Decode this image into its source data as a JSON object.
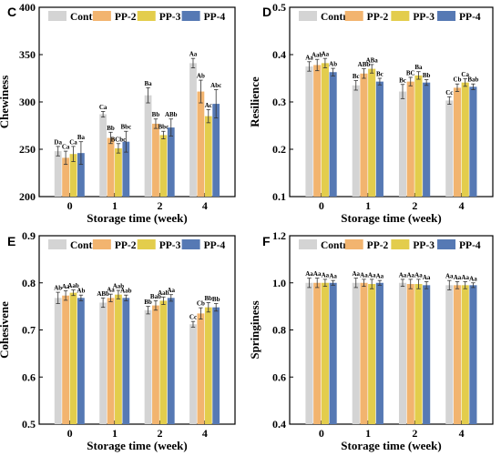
{
  "legend": {
    "series_names": [
      "Control",
      "PP-2",
      "PP-3",
      "PP-4"
    ],
    "colors": [
      "#d4d4d4",
      "#f2b46f",
      "#e3cd4c",
      "#5679b4"
    ]
  },
  "chart_data": [
    {
      "type": "bar",
      "panel_label": "C",
      "ylabel": "Chewiness",
      "xlabel": "Storage time (week)",
      "categories": [
        "0",
        "1",
        "2",
        "4"
      ],
      "ylim": [
        200,
        400
      ],
      "yticks": [
        200,
        250,
        300,
        350,
        400
      ],
      "series": [
        {
          "name": "Control",
          "values": [
            248,
            287,
            307,
            341
          ],
          "errors": [
            5,
            3,
            8,
            5
          ],
          "labels": [
            "Da",
            "Ca",
            "Ba",
            "Aa"
          ]
        },
        {
          "name": "PP-2",
          "values": [
            241,
            262,
            277,
            311
          ],
          "errors": [
            7,
            6,
            5,
            12
          ],
          "labels": [
            "Ca",
            "Bb",
            "Bb",
            "Ab"
          ]
        },
        {
          "name": "PP-3",
          "values": [
            245,
            251,
            265,
            285
          ],
          "errors": [
            8,
            5,
            4,
            7
          ],
          "labels": [
            "Ca",
            "BCbc",
            "Bbc",
            "Ac"
          ]
        },
        {
          "name": "PP-4",
          "values": [
            246,
            258,
            273,
            298
          ],
          "errors": [
            12,
            11,
            9,
            15
          ],
          "labels": [
            "Ba",
            "Bbc",
            "ABb",
            "Abc"
          ]
        }
      ]
    },
    {
      "type": "bar",
      "panel_label": "D",
      "ylabel": "Resilience",
      "xlabel": "Storage time (week)",
      "categories": [
        "0",
        "1",
        "2",
        "4"
      ],
      "ylim": [
        0.1,
        0.5
      ],
      "yticks": [
        0.1,
        0.2,
        0.3,
        0.4,
        0.5
      ],
      "series": [
        {
          "name": "Control",
          "values": [
            0.375,
            0.335,
            0.322,
            0.303
          ],
          "errors": [
            0.01,
            0.01,
            0.015,
            0.008
          ],
          "labels": [
            "Aa",
            "Bc",
            "Bc",
            "Cc"
          ]
        },
        {
          "name": "PP-2",
          "values": [
            0.378,
            0.36,
            0.343,
            0.33
          ],
          "errors": [
            0.012,
            0.01,
            0.009,
            0.008
          ],
          "labels": [
            "Aab",
            "ABb",
            "BC",
            "Cb"
          ]
        },
        {
          "name": "PP-3",
          "values": [
            0.382,
            0.37,
            0.356,
            0.341
          ],
          "errors": [
            0.01,
            0.009,
            0.008,
            0.008
          ],
          "labels": [
            "Aa",
            "ABa",
            "Ba",
            "Ca"
          ]
        },
        {
          "name": "PP-4",
          "values": [
            0.363,
            0.343,
            0.341,
            0.332
          ],
          "errors": [
            0.008,
            0.007,
            0.006,
            0.006
          ],
          "labels": [
            "Ab",
            "Bc",
            "Bb",
            "Bab"
          ]
        }
      ]
    },
    {
      "type": "bar",
      "panel_label": "E",
      "ylabel": "Cohesivene",
      "xlabel": "Storage time (week)",
      "categories": [
        "0",
        "1",
        "2",
        "4"
      ],
      "ylim": [
        0.5,
        0.9
      ],
      "yticks": [
        0.5,
        0.6,
        0.7,
        0.8,
        0.9
      ],
      "series": [
        {
          "name": "Control",
          "values": [
            0.768,
            0.758,
            0.742,
            0.712
          ],
          "errors": [
            0.012,
            0.01,
            0.008,
            0.006
          ],
          "labels": [
            "Ab",
            "ABb",
            "Bb",
            "Cc"
          ]
        },
        {
          "name": "PP-2",
          "values": [
            0.773,
            0.768,
            0.752,
            0.735
          ],
          "errors": [
            0.01,
            0.008,
            0.01,
            0.012
          ],
          "labels": [
            "Aa",
            "Aa",
            "Bab",
            "Cb"
          ]
        },
        {
          "name": "PP-3",
          "values": [
            0.779,
            0.775,
            0.762,
            0.748
          ],
          "errors": [
            0.006,
            0.009,
            0.008,
            0.01
          ],
          "labels": [
            "Aab",
            "Aab",
            "Aab",
            "Bb"
          ]
        },
        {
          "name": "PP-4",
          "values": [
            0.768,
            0.768,
            0.768,
            0.748
          ],
          "errors": [
            0.006,
            0.006,
            0.007,
            0.008
          ],
          "labels": [
            "Ab",
            "Aab",
            "Aa",
            "Bb"
          ]
        }
      ]
    },
    {
      "type": "bar",
      "panel_label": "F",
      "ylabel": "Springiness",
      "xlabel": "Storage time (week)",
      "categories": [
        "0",
        "1",
        "2",
        "4"
      ],
      "ylim": [
        0.4,
        1.2
      ],
      "yticks": [
        0.4,
        0.6,
        0.8,
        1.0,
        1.2
      ],
      "series": [
        {
          "name": "Control",
          "values": [
            1.0,
            1.0,
            1.0,
            0.99
          ],
          "errors": [
            0.02,
            0.02,
            0.015,
            0.02
          ],
          "labels": [
            "Aa",
            "Aa",
            "Aa",
            "Aa"
          ]
        },
        {
          "name": "PP-2",
          "values": [
            1.0,
            1.0,
            0.995,
            0.99
          ],
          "errors": [
            0.02,
            0.015,
            0.02,
            0.015
          ],
          "labels": [
            "Aa",
            "Aa",
            "Aa",
            "Aa"
          ]
        },
        {
          "name": "PP-3",
          "values": [
            1.0,
            0.995,
            0.995,
            0.99
          ],
          "errors": [
            0.015,
            0.02,
            0.02,
            0.015
          ],
          "labels": [
            "Aa",
            "Aa",
            "Aa",
            "Aa"
          ]
        },
        {
          "name": "PP-4",
          "values": [
            1.0,
            1.0,
            0.99,
            0.99
          ],
          "errors": [
            0.01,
            0.01,
            0.015,
            0.01
          ],
          "labels": [
            "Aa",
            "Aa",
            "Aa",
            "Aa"
          ]
        }
      ]
    }
  ]
}
